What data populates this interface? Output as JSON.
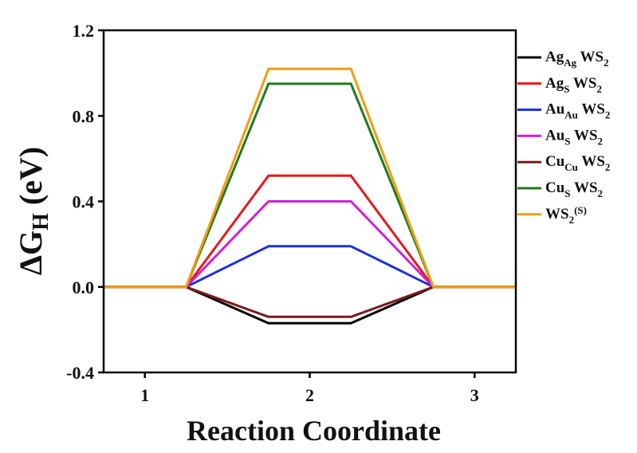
{
  "chart_data": {
    "type": "line",
    "xlabel": "Reaction Coordinate",
    "ylabel": {
      "main": "ΔG",
      "sub": "H",
      "unit": " (eV)"
    },
    "xlim": [
      0.75,
      3.25
    ],
    "ylim": [
      -0.4,
      1.2
    ],
    "xticks": [
      "1",
      "2",
      "3"
    ],
    "xtick_values": [
      1,
      2,
      3
    ],
    "yticks": [
      "-0.4",
      "0.0",
      "0.4",
      "0.8",
      "1.2"
    ],
    "ytick_values": [
      -0.4,
      0.0,
      0.4,
      0.8,
      1.2
    ],
    "grid": false,
    "legend_position": "right",
    "x": [
      0.75,
      1.25,
      1.75,
      2.25,
      2.75,
      3.25
    ],
    "series": [
      {
        "name": "Ag_Ag WS_2",
        "label_parts": [
          {
            "t": "Ag"
          },
          {
            "t": "Ag",
            "sub": true
          },
          {
            "t": " WS"
          },
          {
            "t": "2",
            "sub": true
          }
        ],
        "color": "#000000",
        "values": [
          0,
          0,
          -0.17,
          -0.17,
          0,
          0
        ]
      },
      {
        "name": "Ag_S WS_2",
        "label_parts": [
          {
            "t": "Ag"
          },
          {
            "t": "S",
            "sub": true
          },
          {
            "t": " WS"
          },
          {
            "t": "2",
            "sub": true
          }
        ],
        "color": "#e41a1c",
        "values": [
          0,
          0,
          0.52,
          0.52,
          0,
          0
        ]
      },
      {
        "name": "Au_Au WS_2",
        "label_parts": [
          {
            "t": "Au"
          },
          {
            "t": "Au",
            "sub": true
          },
          {
            "t": " WS"
          },
          {
            "t": "2",
            "sub": true
          }
        ],
        "color": "#1f2fd6",
        "values": [
          0,
          0,
          0.19,
          0.19,
          0,
          0
        ]
      },
      {
        "name": "Au_S WS_2",
        "label_parts": [
          {
            "t": "Au"
          },
          {
            "t": "S",
            "sub": true
          },
          {
            "t": " WS"
          },
          {
            "t": "2",
            "sub": true
          }
        ],
        "color": "#d020d8",
        "values": [
          0,
          0,
          0.4,
          0.4,
          0,
          0
        ]
      },
      {
        "name": "Cu_Cu WS_2",
        "label_parts": [
          {
            "t": "Cu"
          },
          {
            "t": "Cu",
            "sub": true
          },
          {
            "t": " WS"
          },
          {
            "t": "2",
            "sub": true
          }
        ],
        "color": "#7a1a1a",
        "values": [
          0,
          0,
          -0.14,
          -0.14,
          0,
          0
        ]
      },
      {
        "name": "Cu_S WS_2",
        "label_parts": [
          {
            "t": "Cu"
          },
          {
            "t": "S",
            "sub": true
          },
          {
            "t": " WS"
          },
          {
            "t": "2",
            "sub": true
          }
        ],
        "color": "#1e7a1e",
        "values": [
          0,
          0,
          0.95,
          0.95,
          0,
          0
        ]
      },
      {
        "name": "WS_2(S)",
        "label_parts": [
          {
            "t": "WS"
          },
          {
            "t": "2",
            "sub": true
          },
          {
            "t": "(S)",
            "sup": true
          }
        ],
        "color": "#f39c12",
        "values": [
          0,
          0,
          1.02,
          1.02,
          0,
          0
        ]
      }
    ]
  }
}
